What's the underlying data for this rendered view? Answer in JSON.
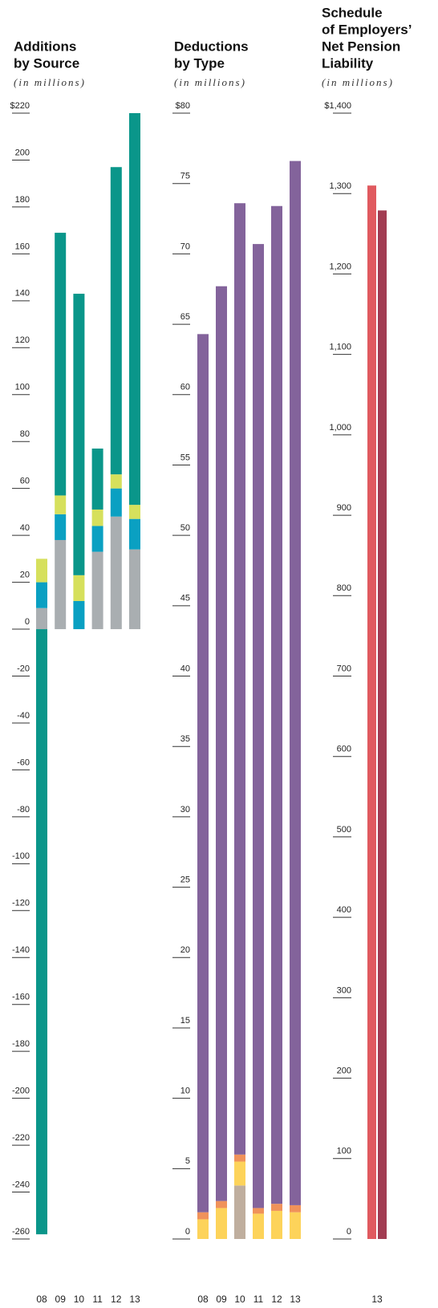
{
  "chart_data": [
    {
      "type": "bar",
      "stacked": true,
      "title": [
        "Additions",
        "by Source"
      ],
      "subtitle": "(in millions)",
      "categories": [
        "08",
        "09",
        "10",
        "11",
        "12",
        "13"
      ],
      "series": [
        {
          "color": "#a9aeb1",
          "values": [
            9,
            38,
            0,
            33,
            48,
            34
          ]
        },
        {
          "color": "#0aa0c2",
          "values": [
            11,
            11,
            12,
            11,
            12,
            13
          ]
        },
        {
          "color": "#d6e05c",
          "values": [
            10,
            8,
            11,
            7,
            6,
            6
          ]
        },
        {
          "color": "#0a968a",
          "values": [
            -258,
            112,
            120,
            26,
            131,
            167
          ]
        }
      ],
      "ylim": [
        -260,
        220
      ],
      "yticks": [
        {
          "value": 220,
          "label": "$220"
        },
        200,
        180,
        160,
        140,
        120,
        100,
        80,
        60,
        40,
        20,
        0,
        -20,
        -40,
        -60,
        -80,
        -100,
        -120,
        -140,
        -160,
        -180,
        -200,
        -220,
        -240,
        -260
      ]
    },
    {
      "type": "bar",
      "stacked": true,
      "title": [
        "Deductions",
        "by Type"
      ],
      "subtitle": "(in millions)",
      "categories": [
        "08",
        "09",
        "10",
        "11",
        "12",
        "13"
      ],
      "series": [
        {
          "color": "#bfae9e",
          "values": [
            0,
            0,
            3.8,
            0,
            0,
            0
          ]
        },
        {
          "color": "#fdd35a",
          "values": [
            1.4,
            2.2,
            1.7,
            1.8,
            2.0,
            1.9
          ]
        },
        {
          "color": "#f0925a",
          "values": [
            0.5,
            0.5,
            0.5,
            0.4,
            0.5,
            0.5
          ]
        },
        {
          "color": "#83639b",
          "values": [
            62.4,
            65.0,
            67.6,
            68.5,
            70.9,
            74.2
          ]
        }
      ],
      "ylim": [
        0,
        80
      ],
      "yticks": [
        {
          "value": 80,
          "label": "$80"
        },
        75,
        70,
        65,
        60,
        55,
        50,
        45,
        40,
        35,
        30,
        25,
        20,
        15,
        10,
        5,
        0
      ]
    },
    {
      "type": "bar",
      "stacked": false,
      "title": [
        "Schedule",
        "of Employers’",
        "Net Pension",
        "Liability"
      ],
      "subtitle": "(in millions)",
      "categories": [
        "13"
      ],
      "series": [
        {
          "color": "#e05a5f",
          "values": [
            1310
          ]
        },
        {
          "color": "#a23c52",
          "values": [
            1279
          ]
        }
      ],
      "ylim": [
        0,
        1400
      ],
      "yticks": [
        {
          "value": 1400,
          "label": "$1,400"
        },
        {
          "value": 1300,
          "label": "1,300"
        },
        {
          "value": 1200,
          "label": "1,200"
        },
        {
          "value": 1100,
          "label": "1,100"
        },
        {
          "value": 1000,
          "label": "1,000"
        },
        900,
        800,
        700,
        600,
        500,
        400,
        300,
        200,
        100,
        0
      ]
    }
  ]
}
